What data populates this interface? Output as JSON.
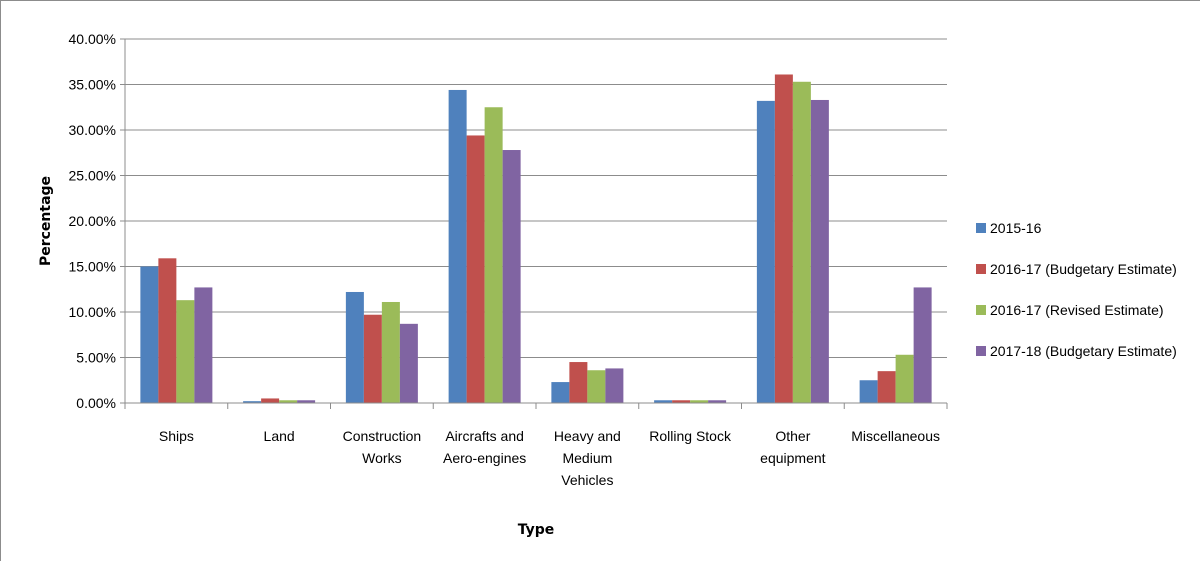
{
  "chart_data": {
    "type": "bar",
    "title": "",
    "xlabel": "Type",
    "ylabel": "Percentage",
    "ylim": [
      0,
      40
    ],
    "y_tick_step": 5,
    "y_tick_format": "percent_2dp",
    "grid": "horizontal",
    "legend_position": "right",
    "categories": [
      [
        "Ships"
      ],
      [
        "Land"
      ],
      [
        "Construction",
        "Works"
      ],
      [
        "Aircrafts and",
        "Aero-engines"
      ],
      [
        "Heavy and",
        "Medium",
        "Vehicles"
      ],
      [
        "Rolling Stock"
      ],
      [
        "Other",
        "equipment"
      ],
      [
        "Miscellaneous"
      ]
    ],
    "series": [
      {
        "name": "2015-16",
        "color": "#4f81bd",
        "values": [
          15.0,
          0.2,
          12.2,
          34.4,
          2.3,
          0.3,
          33.2,
          2.5
        ]
      },
      {
        "name": "2016-17 (Budgetary Estimate)",
        "color": "#c0504d",
        "values": [
          15.9,
          0.5,
          9.7,
          29.4,
          4.5,
          0.3,
          36.1,
          3.5
        ]
      },
      {
        "name": "2016-17 (Revised Estimate)",
        "color": "#9bbb59",
        "values": [
          11.3,
          0.3,
          11.1,
          32.5,
          3.6,
          0.3,
          35.3,
          5.3
        ]
      },
      {
        "name": "2017-18 (Budgetary Estimate)",
        "color": "#8064a2",
        "values": [
          12.7,
          0.3,
          8.7,
          27.8,
          3.8,
          0.3,
          33.3,
          12.7
        ]
      }
    ]
  }
}
